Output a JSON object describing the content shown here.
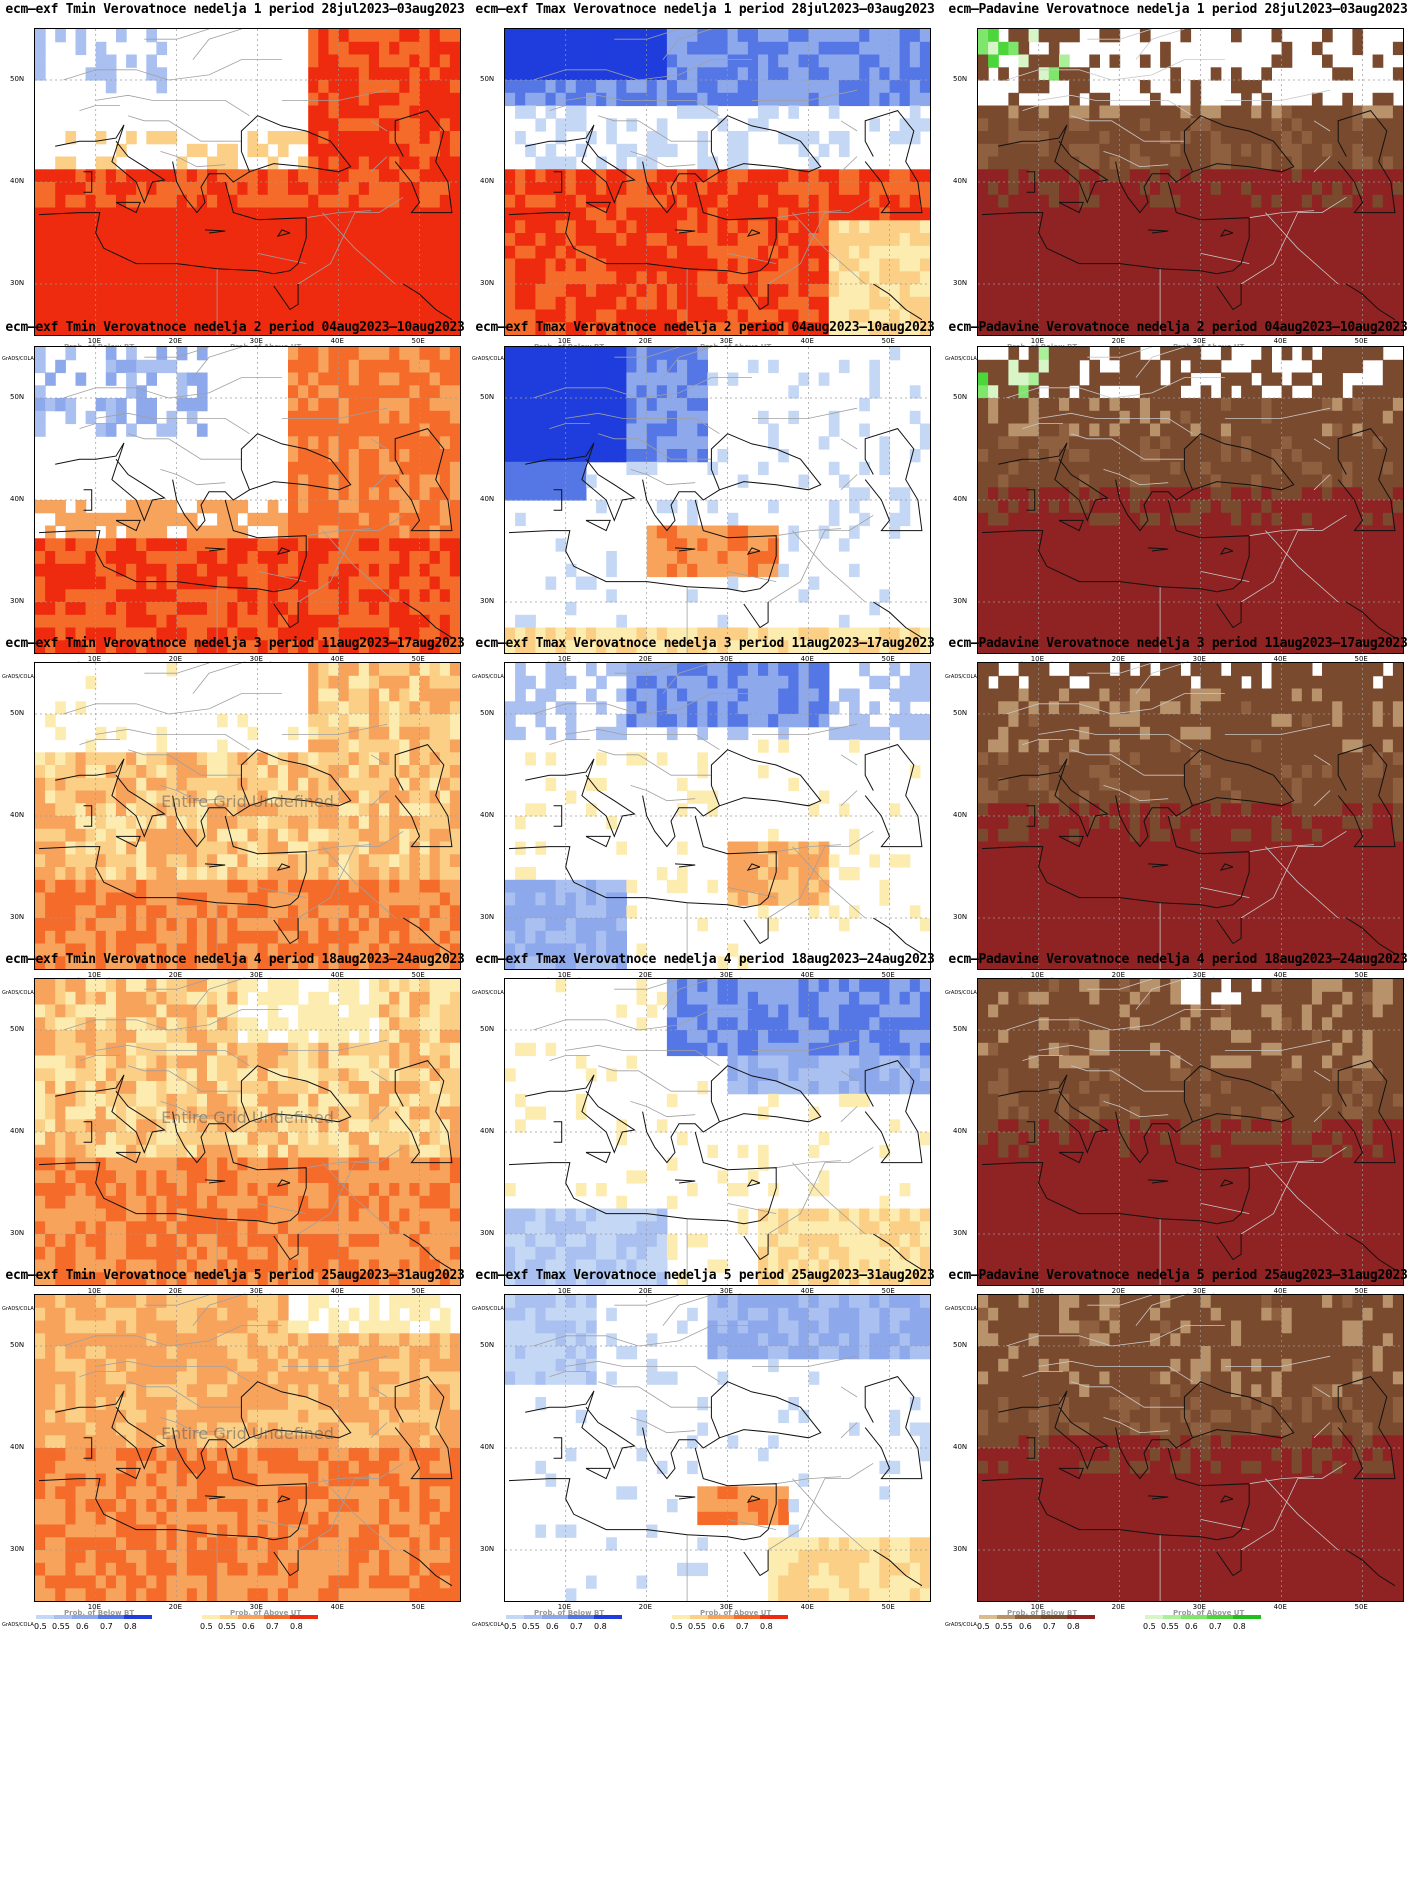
{
  "panels": [
    {
      "title": "ecm–exf Tmin Verovatnoce nedelja 1 period 28jul2023–03aug2023",
      "kind": "tmin",
      "week": 1,
      "undefined_text": ""
    },
    {
      "title": "ecm–exf Tmax Verovatnoce nedelja 1 period 28jul2023–03aug2023",
      "kind": "tmax",
      "week": 1,
      "undefined_text": ""
    },
    {
      "title": "ecm–Padavine Verovatnoce nedelja 1 period 28jul2023–03aug2023",
      "kind": "precip",
      "week": 1,
      "undefined_text": ""
    },
    {
      "title": "ecm–exf Tmin Verovatnoce nedelja 2 period 04aug2023–10aug2023",
      "kind": "tmin",
      "week": 2,
      "undefined_text": ""
    },
    {
      "title": "ecm–exf Tmax Verovatnoce nedelja 2 period 04aug2023–10aug2023",
      "kind": "tmax",
      "week": 2,
      "undefined_text": ""
    },
    {
      "title": "ecm–Padavine Verovatnoce nedelja 2 period 04aug2023–10aug2023",
      "kind": "precip",
      "week": 2,
      "undefined_text": ""
    },
    {
      "title": "ecm–exf Tmin Verovatnoce nedelja 3 period 11aug2023–17aug2023",
      "kind": "tmin",
      "week": 3,
      "undefined_text": "Entire Grid Undefined"
    },
    {
      "title": "ecm–exf Tmax Verovatnoce nedelja 3 period 11aug2023–17aug2023",
      "kind": "tmax",
      "week": 3,
      "undefined_text": ""
    },
    {
      "title": "ecm–Padavine Verovatnoce nedelja 3 period 11aug2023–17aug2023",
      "kind": "precip",
      "week": 3,
      "undefined_text": ""
    },
    {
      "title": "ecm–exf Tmin Verovatnoce nedelja 4 period 18aug2023–24aug2023",
      "kind": "tmin",
      "week": 4,
      "undefined_text": "Entire Grid Undefined"
    },
    {
      "title": "ecm–exf Tmax Verovatnoce nedelja 4 period 18aug2023–24aug2023",
      "kind": "tmax",
      "week": 4,
      "undefined_text": ""
    },
    {
      "title": "ecm–Padavine Verovatnoce nedelja 4 period 18aug2023–24aug2023",
      "kind": "precip",
      "week": 4,
      "undefined_text": ""
    },
    {
      "title": "ecm–exf Tmin Verovatnoce nedelja 5 period 25aug2023–31aug2023",
      "kind": "tmin",
      "week": 5,
      "undefined_text": "Entire Grid Undefined"
    },
    {
      "title": "ecm–exf Tmax Verovatnoce nedelja 5 period 25aug2023–31aug2023",
      "kind": "tmax",
      "week": 5,
      "undefined_text": ""
    },
    {
      "title": "ecm–Padavine Verovatnoce nedelja 5 period 25aug2023–31aug2023",
      "kind": "precip",
      "week": 5,
      "undefined_text": ""
    }
  ],
  "axes": {
    "lat_labels": [
      "50N",
      "40N",
      "30N"
    ],
    "lon_labels": [
      "10E",
      "20E",
      "30E",
      "40E",
      "50E"
    ]
  },
  "legend": {
    "grads_label": "GrADS/COLA",
    "ticks": [
      "0.5",
      "0.55",
      "0.6",
      "0.7",
      "0.8"
    ],
    "temp_below_title": "Prob. of Below BT",
    "temp_above_title": "Prob. of Above UT",
    "precip_below_title": "Prob. of Below BT",
    "precip_above_title": "Prob. of Above UT"
  },
  "palettes": {
    "tmin_below": [
      "#c4d7f5",
      "#a9c0f0",
      "#8ea8ec",
      "#5577e6",
      "#1f3ddd"
    ],
    "tmax_below": [
      "#c4d7f5",
      "#a9c0f0",
      "#8ea8ec",
      "#5577e6",
      "#1f3ddd"
    ],
    "temp_above": [
      "#fdecb0",
      "#fbcf86",
      "#f8a35c",
      "#f56b2a",
      "#ee2b0e"
    ],
    "precip_below": [
      "#d8bc8c",
      "#b8926a",
      "#8f6040",
      "#7a4a2e",
      "#8f2222"
    ],
    "precip_above": [
      "#d8f5c8",
      "#aaf098",
      "#7ee66a",
      "#4cd63c",
      "#1fbf1f"
    ]
  }
}
